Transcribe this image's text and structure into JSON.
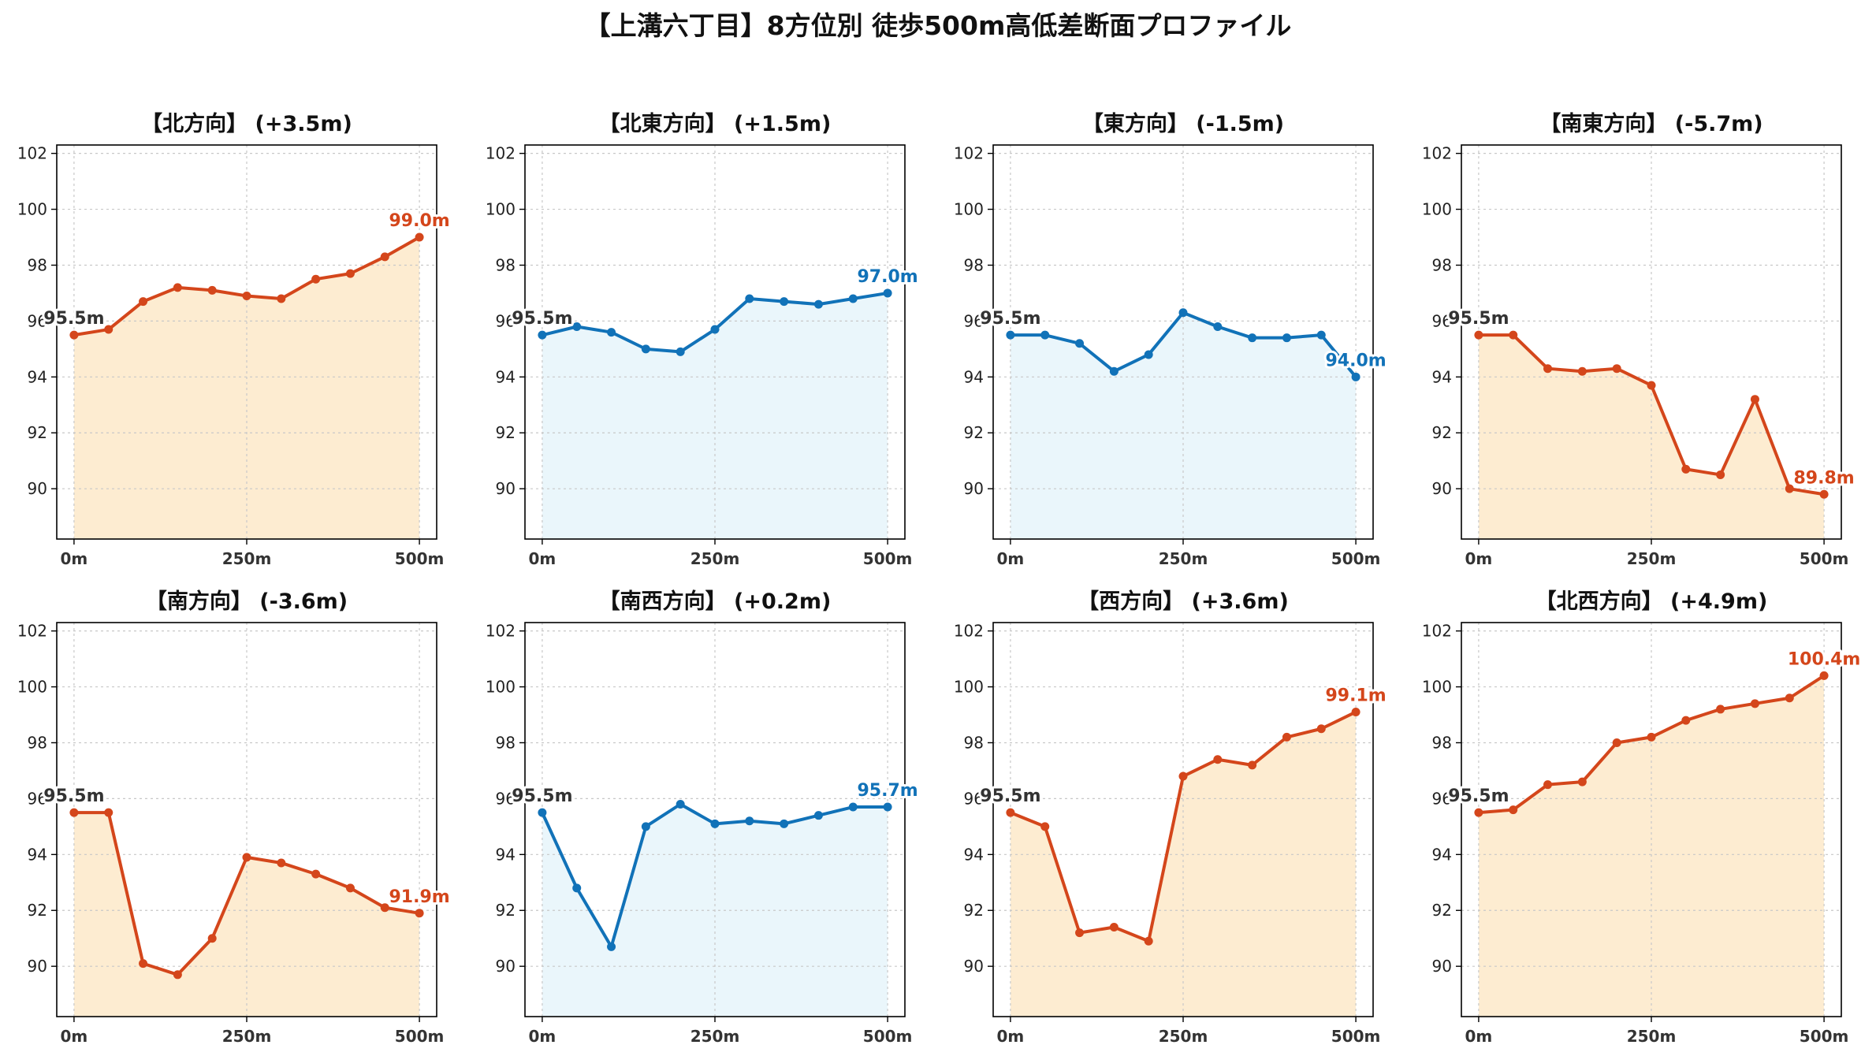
{
  "title": "【上溝六丁目】8方位別 徒歩500m高低差断面プロファイル",
  "colors": {
    "up_line": "#d4461b",
    "up_fill": "#fdecd1",
    "down_line": "#1172b8",
    "down_fill": "#eaf6fb",
    "start_label": "#333333"
  },
  "chart_data": [
    {
      "type": "area",
      "title": "【北方向】 (+3.5m)",
      "trend": "up",
      "x": [
        0,
        50,
        100,
        150,
        200,
        250,
        300,
        350,
        400,
        450,
        500
      ],
      "y": [
        95.5,
        95.7,
        96.7,
        97.2,
        97.1,
        96.9,
        96.8,
        97.5,
        97.7,
        98.3,
        99.0
      ],
      "start_label": "95.5m",
      "end_label": "99.0m",
      "ylim": [
        88.2,
        102.3
      ],
      "yticks": [
        "90",
        "92",
        "94",
        "96",
        "98",
        "100",
        "102"
      ],
      "xticks": [
        "0m",
        "250m",
        "500m"
      ],
      "xlim": [
        -25,
        525
      ],
      "grid": true
    },
    {
      "type": "area",
      "title": "【北東方向】 (+1.5m)",
      "trend": "down",
      "x": [
        0,
        50,
        100,
        150,
        200,
        250,
        300,
        350,
        400,
        450,
        500
      ],
      "y": [
        95.5,
        95.8,
        95.6,
        95.0,
        94.9,
        95.7,
        96.8,
        96.7,
        96.6,
        96.8,
        97.0
      ],
      "start_label": "95.5m",
      "end_label": "97.0m",
      "ylim": [
        88.2,
        102.3
      ],
      "yticks": [
        "90",
        "92",
        "94",
        "96",
        "98",
        "100",
        "102"
      ],
      "xticks": [
        "0m",
        "250m",
        "500m"
      ],
      "xlim": [
        -25,
        525
      ],
      "grid": true
    },
    {
      "type": "area",
      "title": "【東方向】 (-1.5m)",
      "trend": "down",
      "x": [
        0,
        50,
        100,
        150,
        200,
        250,
        300,
        350,
        400,
        450,
        500
      ],
      "y": [
        95.5,
        95.5,
        95.2,
        94.2,
        94.8,
        96.3,
        95.8,
        95.4,
        95.4,
        95.5,
        94.0
      ],
      "start_label": "95.5m",
      "end_label": "94.0m",
      "ylim": [
        88.2,
        102.3
      ],
      "yticks": [
        "90",
        "92",
        "94",
        "96",
        "98",
        "100",
        "102"
      ],
      "xticks": [
        "0m",
        "250m",
        "500m"
      ],
      "xlim": [
        -25,
        525
      ],
      "grid": true
    },
    {
      "type": "area",
      "title": "【南東方向】 (-5.7m)",
      "trend": "up",
      "x": [
        0,
        50,
        100,
        150,
        200,
        250,
        300,
        350,
        400,
        450,
        500
      ],
      "y": [
        95.5,
        95.5,
        94.3,
        94.2,
        94.3,
        93.7,
        90.7,
        90.5,
        93.2,
        90.0,
        89.8
      ],
      "start_label": "95.5m",
      "end_label": "89.8m",
      "ylim": [
        88.2,
        102.3
      ],
      "yticks": [
        "90",
        "92",
        "94",
        "96",
        "98",
        "100",
        "102"
      ],
      "xticks": [
        "0m",
        "250m",
        "500m"
      ],
      "xlim": [
        -25,
        525
      ],
      "grid": true
    },
    {
      "type": "area",
      "title": "【南方向】 (-3.6m)",
      "trend": "up",
      "x": [
        0,
        50,
        100,
        150,
        200,
        250,
        300,
        350,
        400,
        450,
        500
      ],
      "y": [
        95.5,
        95.5,
        90.1,
        89.7,
        91.0,
        93.9,
        93.7,
        93.3,
        92.8,
        92.1,
        91.9
      ],
      "start_label": "95.5m",
      "end_label": "91.9m",
      "ylim": [
        88.2,
        102.3
      ],
      "yticks": [
        "90",
        "92",
        "94",
        "96",
        "98",
        "100",
        "102"
      ],
      "xticks": [
        "0m",
        "250m",
        "500m"
      ],
      "xlim": [
        -25,
        525
      ],
      "grid": true
    },
    {
      "type": "area",
      "title": "【南西方向】 (+0.2m)",
      "trend": "down",
      "x": [
        0,
        50,
        100,
        150,
        200,
        250,
        300,
        350,
        400,
        450,
        500
      ],
      "y": [
        95.5,
        92.8,
        90.7,
        95.0,
        95.8,
        95.1,
        95.2,
        95.1,
        95.4,
        95.7,
        95.7
      ],
      "start_label": "95.5m",
      "end_label": "95.7m",
      "ylim": [
        88.2,
        102.3
      ],
      "yticks": [
        "90",
        "92",
        "94",
        "96",
        "98",
        "100",
        "102"
      ],
      "xticks": [
        "0m",
        "250m",
        "500m"
      ],
      "xlim": [
        -25,
        525
      ],
      "grid": true
    },
    {
      "type": "area",
      "title": "【西方向】 (+3.6m)",
      "trend": "up",
      "x": [
        0,
        50,
        100,
        150,
        200,
        250,
        300,
        350,
        400,
        450,
        500
      ],
      "y": [
        95.5,
        95.0,
        91.2,
        91.4,
        90.9,
        96.8,
        97.4,
        97.2,
        98.2,
        98.5,
        99.1
      ],
      "start_label": "95.5m",
      "end_label": "99.1m",
      "ylim": [
        88.2,
        102.3
      ],
      "yticks": [
        "90",
        "92",
        "94",
        "96",
        "98",
        "100",
        "102"
      ],
      "xticks": [
        "0m",
        "250m",
        "500m"
      ],
      "xlim": [
        -25,
        525
      ],
      "grid": true
    },
    {
      "type": "area",
      "title": "【北西方向】 (+4.9m)",
      "trend": "up",
      "x": [
        0,
        50,
        100,
        150,
        200,
        250,
        300,
        350,
        400,
        450,
        500
      ],
      "y": [
        95.5,
        95.6,
        96.5,
        96.6,
        98.0,
        98.2,
        98.8,
        99.2,
        99.4,
        99.6,
        100.4
      ],
      "start_label": "95.5m",
      "end_label": "100.4m",
      "ylim": [
        88.2,
        102.3
      ],
      "yticks": [
        "90",
        "92",
        "94",
        "96",
        "98",
        "100",
        "102"
      ],
      "xticks": [
        "0m",
        "250m",
        "500m"
      ],
      "xlim": [
        -25,
        525
      ],
      "grid": true
    }
  ]
}
